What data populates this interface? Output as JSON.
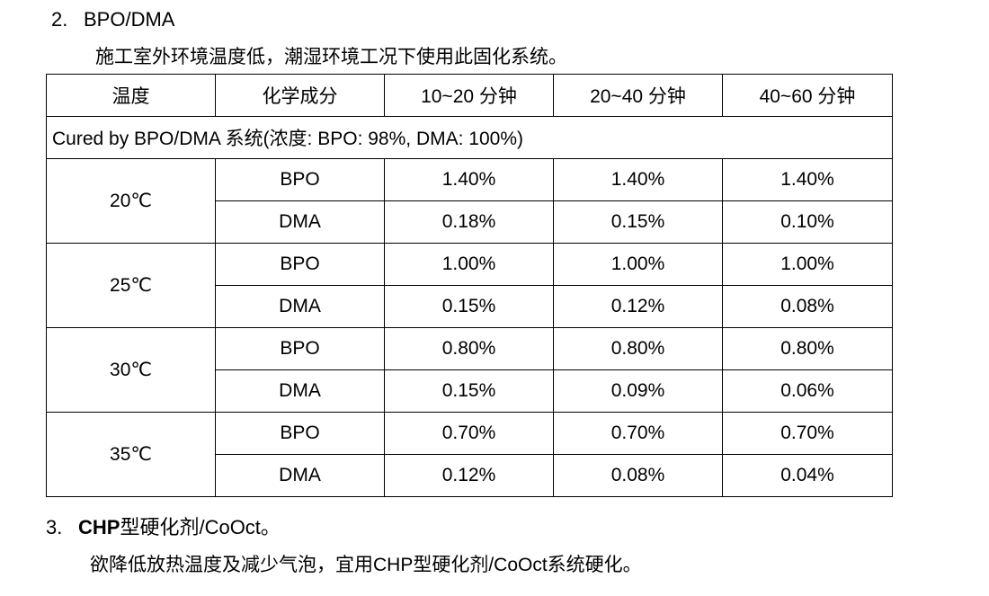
{
  "section2": {
    "number": "2.",
    "title": "BPO/DMA",
    "description": "施工室外环境温度低，潮湿环境工况下使用此固化系统。"
  },
  "table": {
    "headers": [
      "温度",
      "化学成分",
      "10~20 分钟",
      "20~40  分钟",
      "40~60  分钟"
    ],
    "note": "Cured by BPO/DMA 系统(浓度: BPO: 98%, DMA: 100%)",
    "groups": [
      {
        "temp": "20℃",
        "rows": [
          {
            "component": "BPO",
            "values": [
              "1.40%",
              "1.40%",
              "1.40%"
            ]
          },
          {
            "component": "DMA",
            "values": [
              "0.18%",
              "0.15%",
              "0.10%"
            ]
          }
        ]
      },
      {
        "temp": "25℃",
        "rows": [
          {
            "component": "BPO",
            "values": [
              "1.00%",
              "1.00%",
              "1.00%"
            ]
          },
          {
            "component": "DMA",
            "values": [
              "0.15%",
              "0.12%",
              "0.08%"
            ]
          }
        ]
      },
      {
        "temp": "30℃",
        "rows": [
          {
            "component": "BPO",
            "values": [
              "0.80%",
              "0.80%",
              "0.80%"
            ]
          },
          {
            "component": "DMA",
            "values": [
              "0.15%",
              "0.09%",
              "0.06%"
            ]
          }
        ]
      },
      {
        "temp": "35℃",
        "rows": [
          {
            "component": "BPO",
            "values": [
              "0.70%",
              "0.70%",
              "0.70%"
            ]
          },
          {
            "component": "DMA",
            "values": [
              "0.12%",
              "0.08%",
              "0.04%"
            ]
          }
        ]
      }
    ]
  },
  "section3": {
    "number": "3.",
    "title_bold": "CHP",
    "title_rest": "型硬化剂/CoOct。",
    "description": "欲降低放热温度及减少气泡，宜用CHP型硬化剂/CoOct系统硬化。"
  }
}
